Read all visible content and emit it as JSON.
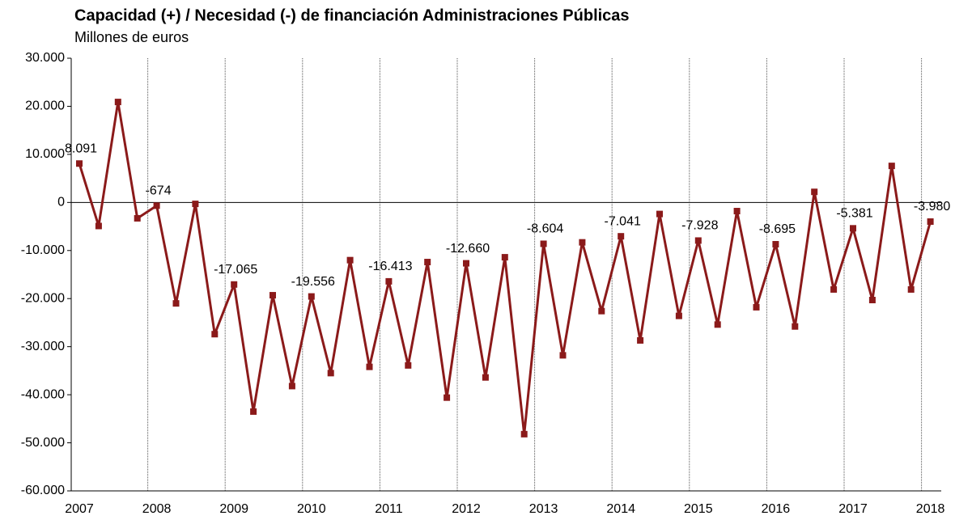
{
  "chart_data": {
    "type": "line",
    "title": "Capacidad (+) / Necesidad (-) de financiación Administraciones Públicas",
    "subtitle": "Millones de euros",
    "categories": [
      "2007",
      null,
      null,
      null,
      "2008",
      null,
      null,
      null,
      "2009",
      null,
      null,
      null,
      "2010",
      null,
      null,
      null,
      "2011",
      null,
      null,
      null,
      "2012",
      null,
      null,
      null,
      "2013",
      null,
      null,
      null,
      "2014",
      null,
      null,
      null,
      "2015",
      null,
      null,
      null,
      "2016",
      null,
      null,
      null,
      "2017",
      null,
      null,
      null,
      "2018"
    ],
    "values": [
      8091,
      -4900,
      20900,
      -3300,
      -674,
      -21000,
      -300,
      -27400,
      -17065,
      -43500,
      -19300,
      -38200,
      -19556,
      -35500,
      -12000,
      -34200,
      -16413,
      -33900,
      -12400,
      -40600,
      -12660,
      -36400,
      -11400,
      -48200,
      -8604,
      -31800,
      -8300,
      -22600,
      -7041,
      -28700,
      -2400,
      -23600,
      -7928,
      -25400,
      -1800,
      -21800,
      -8695,
      -25800,
      2200,
      -18100,
      -5381,
      -20300,
      7600,
      -18100,
      -3980
    ],
    "value_labels": [
      "8.091",
      null,
      null,
      null,
      "-674",
      null,
      null,
      null,
      "-17.065",
      null,
      null,
      null,
      "-19.556",
      null,
      null,
      null,
      "-16.413",
      null,
      null,
      null,
      "-12.660",
      null,
      null,
      null,
      "-8.604",
      null,
      null,
      null,
      "-7.041",
      null,
      null,
      null,
      "-7.928",
      null,
      null,
      null,
      "-8.695",
      null,
      null,
      null,
      "-5.381",
      null,
      null,
      null,
      "-3.980"
    ],
    "color": "#8b1a1a",
    "ylim": [
      -60000,
      30000
    ],
    "yticks": [
      {
        "value": -60000,
        "label": "-60.000"
      },
      {
        "value": -50000,
        "label": "-50.000"
      },
      {
        "value": -40000,
        "label": "-40.000"
      },
      {
        "value": -30000,
        "label": "-30.000"
      },
      {
        "value": -20000,
        "label": "-20.000"
      },
      {
        "value": -10000,
        "label": "-10.000"
      },
      0,
      {
        "value": 10000,
        "label": "10.000"
      },
      {
        "value": 20000,
        "label": "20.000"
      },
      {
        "value": 30000,
        "label": "30.000"
      }
    ]
  }
}
